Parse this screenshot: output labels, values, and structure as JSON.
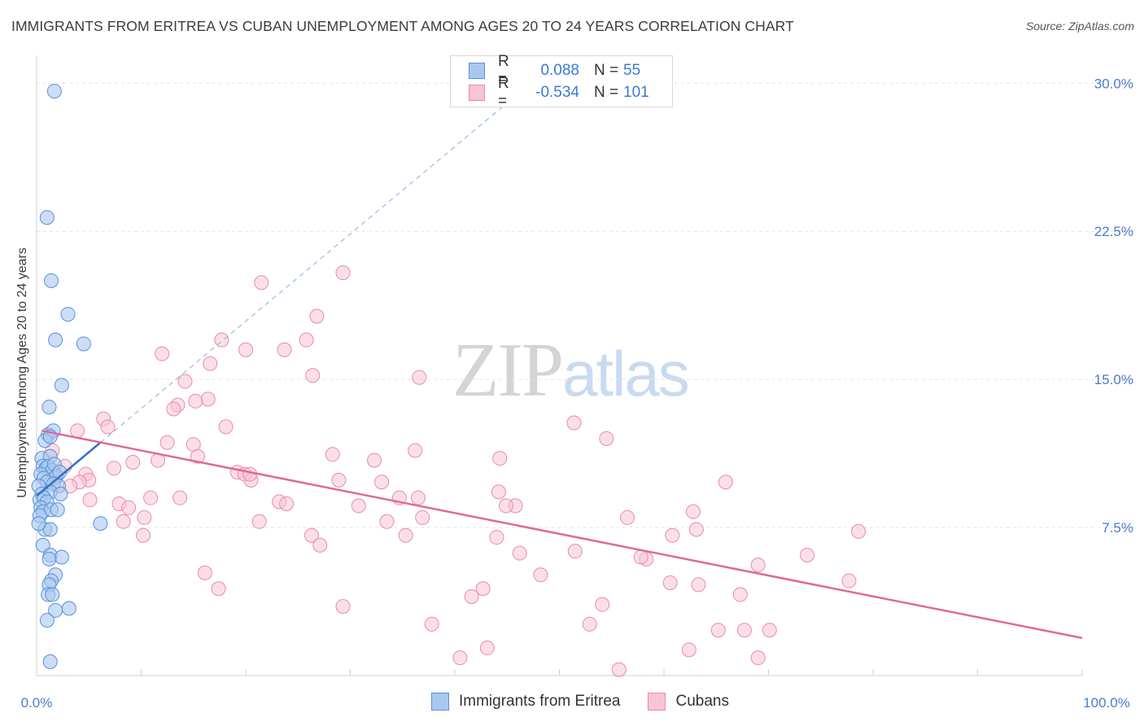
{
  "header": {
    "title": "IMMIGRANTS FROM ERITREA VS CUBAN UNEMPLOYMENT AMONG AGES 20 TO 24 YEARS CORRELATION CHART",
    "source": "Source: ZipAtlas.com"
  },
  "watermark": {
    "zip": "ZIP",
    "atlas": "atlas"
  },
  "legend": {
    "series1": {
      "r_label": "R =",
      "r_value": "0.088",
      "n_label": "N =",
      "n_value": "55"
    },
    "series2": {
      "r_label": "R =",
      "r_value": "-0.534",
      "n_label": "N =",
      "n_value": "101"
    }
  },
  "bottom_legend": {
    "series1": "Immigrants from Eritrea",
    "series2": "Cubans"
  },
  "colors": {
    "series1_fill": "#a8c8f0",
    "series1_stroke": "#5b8fd6",
    "series1_line": "#3570c8",
    "series2_fill": "#f7c4d4",
    "series2_stroke": "#e98aaa",
    "series2_line": "#e06a94",
    "tick_label": "#4a7cc9",
    "grid": "#e3e3e3"
  },
  "chart_data": {
    "type": "scatter",
    "title": "IMMIGRANTS FROM ERITREA VS CUBAN UNEMPLOYMENT AMONG AGES 20 TO 24 YEARS CORRELATION CHART",
    "xlabel": "",
    "ylabel": "Unemployment Among Ages 20 to 24 years",
    "xlim": [
      0,
      100
    ],
    "ylim": [
      0,
      31
    ],
    "x_tick_labels": [
      "0.0%",
      "100.0%"
    ],
    "y_ticks": [
      7.5,
      15.0,
      22.5,
      30.0
    ],
    "y_tick_labels": [
      "7.5%",
      "15.0%",
      "22.5%",
      "30.0%"
    ],
    "grid": true,
    "series": [
      {
        "name": "Immigrants from Eritrea",
        "r": 0.088,
        "n": 55,
        "trend_solid": [
          [
            0.0,
            9.1
          ],
          [
            6.1,
            11.8
          ]
        ],
        "trend_dashed": [
          [
            6.1,
            11.8
          ],
          [
            45.0,
            29.0
          ]
        ],
        "points": [
          [
            1.7,
            29.6
          ],
          [
            1.0,
            23.2
          ],
          [
            1.4,
            20.0
          ],
          [
            3.0,
            18.3
          ],
          [
            1.8,
            17.0
          ],
          [
            4.5,
            16.8
          ],
          [
            2.4,
            14.7
          ],
          [
            1.2,
            13.6
          ],
          [
            1.1,
            12.2
          ],
          [
            1.6,
            12.4
          ],
          [
            0.8,
            11.9
          ],
          [
            1.3,
            12.1
          ],
          [
            0.5,
            11.0
          ],
          [
            1.3,
            11.1
          ],
          [
            0.6,
            10.6
          ],
          [
            0.9,
            10.5
          ],
          [
            1.1,
            10.6
          ],
          [
            1.5,
            10.4
          ],
          [
            1.7,
            10.7
          ],
          [
            0.4,
            10.2
          ],
          [
            0.7,
            10.0
          ],
          [
            1.9,
            10.1
          ],
          [
            2.2,
            10.3
          ],
          [
            1.0,
            9.8
          ],
          [
            0.2,
            9.6
          ],
          [
            1.6,
            9.7
          ],
          [
            2.1,
            9.6
          ],
          [
            0.5,
            9.2
          ],
          [
            1.3,
            9.3
          ],
          [
            2.3,
            9.2
          ],
          [
            0.3,
            8.9
          ],
          [
            0.7,
            9.0
          ],
          [
            1.0,
            8.8
          ],
          [
            0.4,
            8.5
          ],
          [
            0.6,
            8.3
          ],
          [
            1.4,
            8.4
          ],
          [
            2.0,
            8.4
          ],
          [
            0.3,
            8.1
          ],
          [
            0.8,
            7.4
          ],
          [
            1.3,
            7.4
          ],
          [
            6.1,
            7.7
          ],
          [
            0.6,
            6.6
          ],
          [
            1.3,
            6.1
          ],
          [
            2.4,
            6.0
          ],
          [
            1.2,
            5.9
          ],
          [
            1.8,
            5.1
          ],
          [
            1.4,
            4.8
          ],
          [
            1.2,
            4.6
          ],
          [
            1.1,
            4.1
          ],
          [
            1.5,
            4.1
          ],
          [
            3.1,
            3.4
          ],
          [
            1.8,
            3.3
          ],
          [
            1.0,
            2.8
          ],
          [
            1.3,
            0.7
          ],
          [
            0.2,
            7.7
          ]
        ]
      },
      {
        "name": "Cubans",
        "r": -0.534,
        "n": 101,
        "trend": [
          [
            0.5,
            12.4
          ],
          [
            100.0,
            1.9
          ]
        ],
        "points": [
          [
            29.3,
            20.4
          ],
          [
            21.5,
            19.9
          ],
          [
            26.8,
            18.2
          ],
          [
            17.7,
            17.0
          ],
          [
            25.8,
            17.0
          ],
          [
            20.0,
            16.5
          ],
          [
            23.7,
            16.5
          ],
          [
            12.0,
            16.3
          ],
          [
            16.6,
            15.8
          ],
          [
            26.4,
            15.2
          ],
          [
            36.6,
            15.1
          ],
          [
            14.2,
            14.9
          ],
          [
            16.4,
            14.0
          ],
          [
            13.5,
            13.7
          ],
          [
            13.1,
            13.5
          ],
          [
            6.4,
            13.0
          ],
          [
            51.4,
            12.8
          ],
          [
            18.1,
            12.6
          ],
          [
            6.8,
            12.6
          ],
          [
            3.9,
            12.4
          ],
          [
            54.5,
            12.0
          ],
          [
            12.5,
            11.8
          ],
          [
            15.0,
            11.7
          ],
          [
            36.2,
            11.4
          ],
          [
            1.5,
            11.4
          ],
          [
            28.3,
            11.2
          ],
          [
            15.4,
            11.1
          ],
          [
            32.3,
            10.9
          ],
          [
            44.3,
            11.0
          ],
          [
            11.6,
            10.9
          ],
          [
            9.2,
            10.8
          ],
          [
            2.7,
            10.6
          ],
          [
            7.4,
            10.5
          ],
          [
            19.2,
            10.3
          ],
          [
            19.9,
            10.2
          ],
          [
            4.7,
            10.2
          ],
          [
            1.8,
            10.0
          ],
          [
            5.0,
            9.9
          ],
          [
            28.9,
            9.9
          ],
          [
            20.5,
            9.9
          ],
          [
            33.0,
            9.8
          ],
          [
            4.1,
            9.8
          ],
          [
            3.2,
            9.6
          ],
          [
            65.9,
            9.8
          ],
          [
            44.2,
            9.3
          ],
          [
            34.7,
            9.0
          ],
          [
            10.9,
            9.0
          ],
          [
            13.7,
            9.0
          ],
          [
            5.1,
            8.9
          ],
          [
            36.5,
            9.0
          ],
          [
            23.2,
            8.8
          ],
          [
            7.9,
            8.7
          ],
          [
            23.9,
            8.7
          ],
          [
            30.8,
            8.6
          ],
          [
            45.8,
            8.6
          ],
          [
            44.9,
            8.6
          ],
          [
            62.8,
            8.3
          ],
          [
            56.5,
            8.0
          ],
          [
            36.9,
            8.0
          ],
          [
            10.3,
            8.0
          ],
          [
            8.3,
            7.8
          ],
          [
            21.3,
            7.8
          ],
          [
            33.5,
            7.8
          ],
          [
            63.1,
            7.4
          ],
          [
            78.6,
            7.3
          ],
          [
            26.3,
            7.1
          ],
          [
            35.3,
            7.1
          ],
          [
            60.8,
            7.1
          ],
          [
            44.0,
            7.0
          ],
          [
            10.2,
            7.1
          ],
          [
            27.1,
            6.6
          ],
          [
            51.5,
            6.3
          ],
          [
            46.2,
            6.2
          ],
          [
            73.7,
            6.1
          ],
          [
            58.3,
            5.9
          ],
          [
            69.0,
            5.6
          ],
          [
            16.1,
            5.2
          ],
          [
            48.2,
            5.1
          ],
          [
            60.6,
            4.7
          ],
          [
            77.7,
            4.8
          ],
          [
            63.3,
            4.6
          ],
          [
            42.7,
            4.4
          ],
          [
            17.4,
            4.4
          ],
          [
            67.3,
            4.1
          ],
          [
            41.6,
            4.0
          ],
          [
            54.1,
            3.6
          ],
          [
            29.3,
            3.5
          ],
          [
            37.8,
            2.6
          ],
          [
            52.9,
            2.6
          ],
          [
            65.2,
            2.3
          ],
          [
            67.7,
            2.3
          ],
          [
            70.1,
            2.3
          ],
          [
            43.1,
            1.4
          ],
          [
            62.4,
            1.3
          ],
          [
            40.5,
            0.9
          ],
          [
            69.0,
            0.9
          ],
          [
            55.7,
            0.3
          ],
          [
            20.4,
            10.2
          ],
          [
            15.2,
            13.9
          ],
          [
            8.8,
            8.5
          ],
          [
            57.8,
            6.0
          ]
        ]
      }
    ]
  }
}
